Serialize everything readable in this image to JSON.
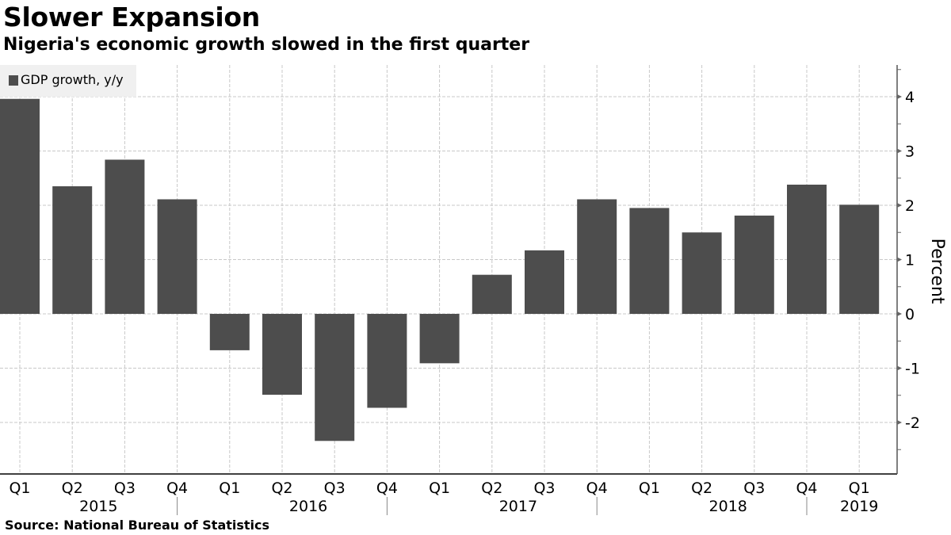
{
  "header": {
    "title": "Slower Expansion",
    "subtitle": "Nigeria's economic growth slowed in the first quarter"
  },
  "footer": {
    "source": "Source: National Bureau of Statistics"
  },
  "colors": {
    "bar": "#4d4d4d",
    "grid": "#c8c8c8",
    "legend_bg": "#f0f0f0"
  },
  "chart_data": {
    "type": "bar",
    "title": "Slower Expansion",
    "subtitle": "Nigeria's economic growth slowed in the first quarter",
    "xlabel": "",
    "ylabel": "Percent",
    "ylim": [
      -2.9,
      4.6
    ],
    "yticks": [
      -2,
      -1,
      0,
      1,
      2,
      3,
      4
    ],
    "grid": true,
    "legend": {
      "position": "top-left",
      "entries": [
        "GDP growth, y/y"
      ]
    },
    "categories": [
      "Q1",
      "Q2",
      "Q3",
      "Q4",
      "Q1",
      "Q2",
      "Q3",
      "Q4",
      "Q1",
      "Q2",
      "Q3",
      "Q4",
      "Q1",
      "Q2",
      "Q3",
      "Q4",
      "Q1"
    ],
    "years": [
      {
        "label": "2015",
        "start": 0,
        "end": 3
      },
      {
        "label": "2016",
        "start": 4,
        "end": 7
      },
      {
        "label": "2017",
        "start": 8,
        "end": 11
      },
      {
        "label": "2018",
        "start": 12,
        "end": 15
      },
      {
        "label": "2019",
        "start": 16,
        "end": 16
      }
    ],
    "series": [
      {
        "name": "GDP growth, y/y",
        "values": [
          3.96,
          2.35,
          2.84,
          2.11,
          -0.67,
          -1.49,
          -2.34,
          -1.73,
          -0.91,
          0.72,
          1.17,
          2.11,
          1.95,
          1.5,
          1.81,
          2.38,
          2.01
        ]
      }
    ],
    "source": "Source: National Bureau of Statistics"
  }
}
